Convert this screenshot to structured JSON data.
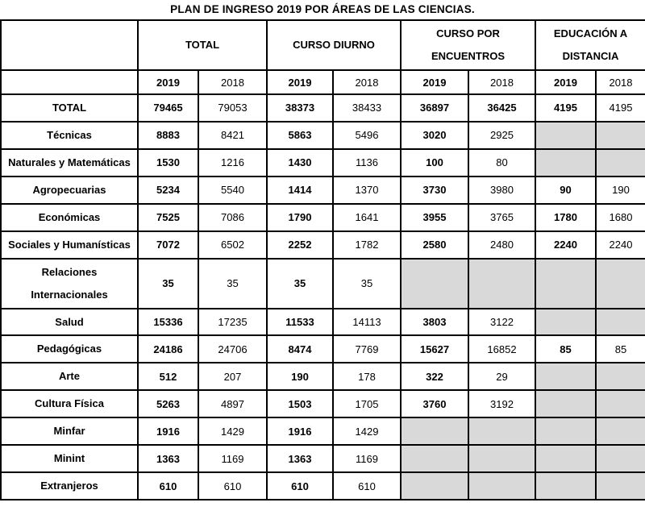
{
  "title": "PLAN DE INGRESO 2019 POR ÁREAS DE LAS CIENCIAS.",
  "colors": {
    "shaded_cell": "#d9d9d9",
    "border": "#000000",
    "text": "#000000"
  },
  "table": {
    "column_groups": [
      {
        "label": "TOTAL"
      },
      {
        "label": "CURSO DIURNO"
      },
      {
        "label": "CURSO POR ENCUENTROS"
      },
      {
        "label": "EDUCACIÓN A DISTANCIA"
      }
    ],
    "year_headers": [
      "2019",
      "2018",
      "2019",
      "2018",
      "2019",
      "2018",
      "2019",
      "2018"
    ],
    "rows": [
      {
        "label": "TOTAL",
        "cells": [
          {
            "v": "79465",
            "bold": true
          },
          {
            "v": "79053"
          },
          {
            "v": "38373",
            "bold": true
          },
          {
            "v": "38433"
          },
          {
            "v": "36897",
            "bold": true
          },
          {
            "v": "36425",
            "bold": true
          },
          {
            "v": "4195",
            "bold": true
          },
          {
            "v": "4195"
          }
        ]
      },
      {
        "label": "Técnicas",
        "cells": [
          {
            "v": "8883",
            "bold": true
          },
          {
            "v": "8421"
          },
          {
            "v": "5863",
            "bold": true
          },
          {
            "v": "5496"
          },
          {
            "v": "3020",
            "bold": true
          },
          {
            "v": "2925"
          },
          {
            "v": "",
            "gray": true
          },
          {
            "v": "",
            "gray": true
          }
        ]
      },
      {
        "label": "Naturales y Matemáticas",
        "cells": [
          {
            "v": "1530",
            "bold": true
          },
          {
            "v": "1216"
          },
          {
            "v": "1430",
            "bold": true
          },
          {
            "v": "1136"
          },
          {
            "v": "100",
            "bold": true
          },
          {
            "v": "80"
          },
          {
            "v": "",
            "gray": true
          },
          {
            "v": "",
            "gray": true
          }
        ]
      },
      {
        "label": "Agropecuarias",
        "cells": [
          {
            "v": "5234",
            "bold": true
          },
          {
            "v": "5540"
          },
          {
            "v": "1414",
            "bold": true
          },
          {
            "v": "1370"
          },
          {
            "v": "3730",
            "bold": true
          },
          {
            "v": "3980"
          },
          {
            "v": "90",
            "bold": true
          },
          {
            "v": "190"
          }
        ]
      },
      {
        "label": "Económicas",
        "cells": [
          {
            "v": "7525",
            "bold": true
          },
          {
            "v": "7086"
          },
          {
            "v": "1790",
            "bold": true
          },
          {
            "v": "1641"
          },
          {
            "v": "3955",
            "bold": true
          },
          {
            "v": "3765"
          },
          {
            "v": "1780",
            "bold": true
          },
          {
            "v": "1680"
          }
        ]
      },
      {
        "label": "Sociales y Humanísticas",
        "cells": [
          {
            "v": "7072",
            "bold": true
          },
          {
            "v": "6502"
          },
          {
            "v": "2252",
            "bold": true
          },
          {
            "v": "1782"
          },
          {
            "v": "2580",
            "bold": true
          },
          {
            "v": "2480"
          },
          {
            "v": "2240",
            "bold": true
          },
          {
            "v": "2240"
          }
        ]
      },
      {
        "label": "Relaciones Internacionales",
        "cells": [
          {
            "v": "35",
            "bold": true
          },
          {
            "v": "35"
          },
          {
            "v": "35",
            "bold": true
          },
          {
            "v": "35"
          },
          {
            "v": "",
            "gray": true
          },
          {
            "v": "",
            "gray": true
          },
          {
            "v": "",
            "gray": true
          },
          {
            "v": "",
            "gray": true
          }
        ]
      },
      {
        "label": "Salud",
        "cells": [
          {
            "v": "15336",
            "bold": true
          },
          {
            "v": "17235"
          },
          {
            "v": "11533",
            "bold": true
          },
          {
            "v": "14113"
          },
          {
            "v": "3803",
            "bold": true
          },
          {
            "v": "3122"
          },
          {
            "v": "",
            "gray": true
          },
          {
            "v": "",
            "gray": true
          }
        ]
      },
      {
        "label": "Pedagógicas",
        "cells": [
          {
            "v": "24186",
            "bold": true
          },
          {
            "v": "24706"
          },
          {
            "v": "8474",
            "bold": true
          },
          {
            "v": "7769"
          },
          {
            "v": "15627",
            "bold": true
          },
          {
            "v": "16852"
          },
          {
            "v": "85",
            "bold": true
          },
          {
            "v": "85"
          }
        ]
      },
      {
        "label": "Arte",
        "cells": [
          {
            "v": "512",
            "bold": true
          },
          {
            "v": "207"
          },
          {
            "v": "190",
            "bold": true
          },
          {
            "v": "178"
          },
          {
            "v": "322",
            "bold": true
          },
          {
            "v": "29"
          },
          {
            "v": "",
            "gray": true
          },
          {
            "v": "",
            "gray": true
          }
        ]
      },
      {
        "label": "Cultura Física",
        "cells": [
          {
            "v": "5263",
            "bold": true
          },
          {
            "v": "4897"
          },
          {
            "v": "1503",
            "bold": true
          },
          {
            "v": "1705"
          },
          {
            "v": "3760",
            "bold": true
          },
          {
            "v": "3192"
          },
          {
            "v": "",
            "gray": true
          },
          {
            "v": "",
            "gray": true
          }
        ]
      },
      {
        "label": "Minfar",
        "cells": [
          {
            "v": "1916",
            "bold": true
          },
          {
            "v": "1429"
          },
          {
            "v": "1916",
            "bold": true
          },
          {
            "v": "1429"
          },
          {
            "v": "",
            "gray": true
          },
          {
            "v": "",
            "gray": true
          },
          {
            "v": "",
            "gray": true
          },
          {
            "v": "",
            "gray": true
          }
        ]
      },
      {
        "label": "Minint",
        "cells": [
          {
            "v": "1363",
            "bold": true
          },
          {
            "v": "1169"
          },
          {
            "v": "1363",
            "bold": true
          },
          {
            "v": "1169"
          },
          {
            "v": "",
            "gray": true
          },
          {
            "v": "",
            "gray": true
          },
          {
            "v": "",
            "gray": true
          },
          {
            "v": "",
            "gray": true
          }
        ]
      },
      {
        "label": "Extranjeros",
        "cells": [
          {
            "v": "610",
            "bold": true
          },
          {
            "v": "610"
          },
          {
            "v": "610",
            "bold": true
          },
          {
            "v": "610"
          },
          {
            "v": "",
            "gray": true
          },
          {
            "v": "",
            "gray": true
          },
          {
            "v": "",
            "gray": true
          },
          {
            "v": "",
            "gray": true
          }
        ]
      }
    ]
  }
}
